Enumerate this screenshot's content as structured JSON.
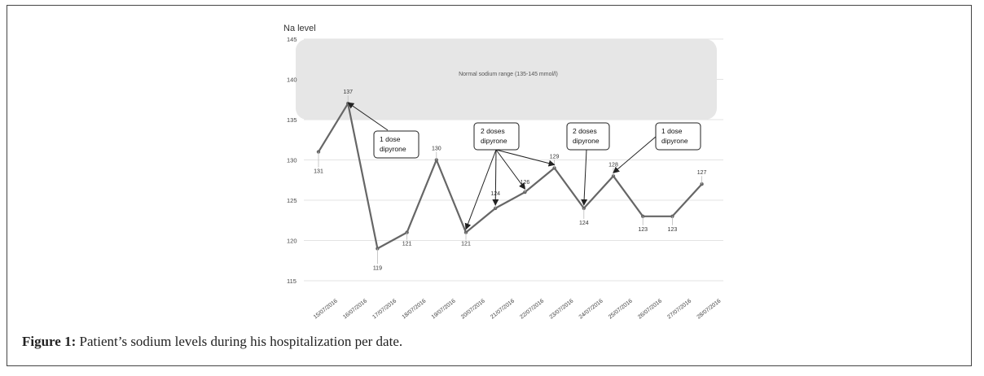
{
  "caption": {
    "label": "Figure 1:",
    "text": "Patient’s sodium levels during his hospitalization per date."
  },
  "chart_data": {
    "type": "line",
    "ylabel": "Na level",
    "ylim": [
      115,
      145
    ],
    "yticks": [
      115,
      120,
      125,
      130,
      135,
      140,
      145
    ],
    "grid": true,
    "categories": [
      "15/07/2016",
      "16/07/2016",
      "17/07/2016",
      "18/07/2016",
      "19/07/2016",
      "20/07/2016",
      "21/07/2016",
      "22/07/2016",
      "23/07/2016",
      "24/07/2016",
      "25/07/2016",
      "26/07/2016",
      "27/07/2016",
      "28/07/2016"
    ],
    "series": [
      {
        "values": [
          131,
          137,
          119,
          121,
          130,
          121,
          124,
          126,
          129,
          124,
          128,
          123,
          123,
          127
        ]
      }
    ],
    "normal_range": {
      "label": "Normal sodium range (135-145 mmol/l)",
      "from": 135,
      "to": 145
    },
    "annotations": [
      {
        "lines": [
          "1 dose",
          "dipyrone"
        ],
        "targets": [
          1
        ]
      },
      {
        "lines": [
          "2 doses",
          "dipyrone"
        ],
        "targets": [
          5,
          6,
          7,
          8
        ]
      },
      {
        "lines": [
          "2 doses",
          "dipyrone"
        ],
        "targets": [
          9
        ]
      },
      {
        "lines": [
          "1 dose",
          "dipyrone"
        ],
        "targets": [
          10
        ]
      }
    ],
    "colors": {
      "line": "#666666",
      "band": "#e6e6e6",
      "grid": "#e3e3e3"
    }
  }
}
